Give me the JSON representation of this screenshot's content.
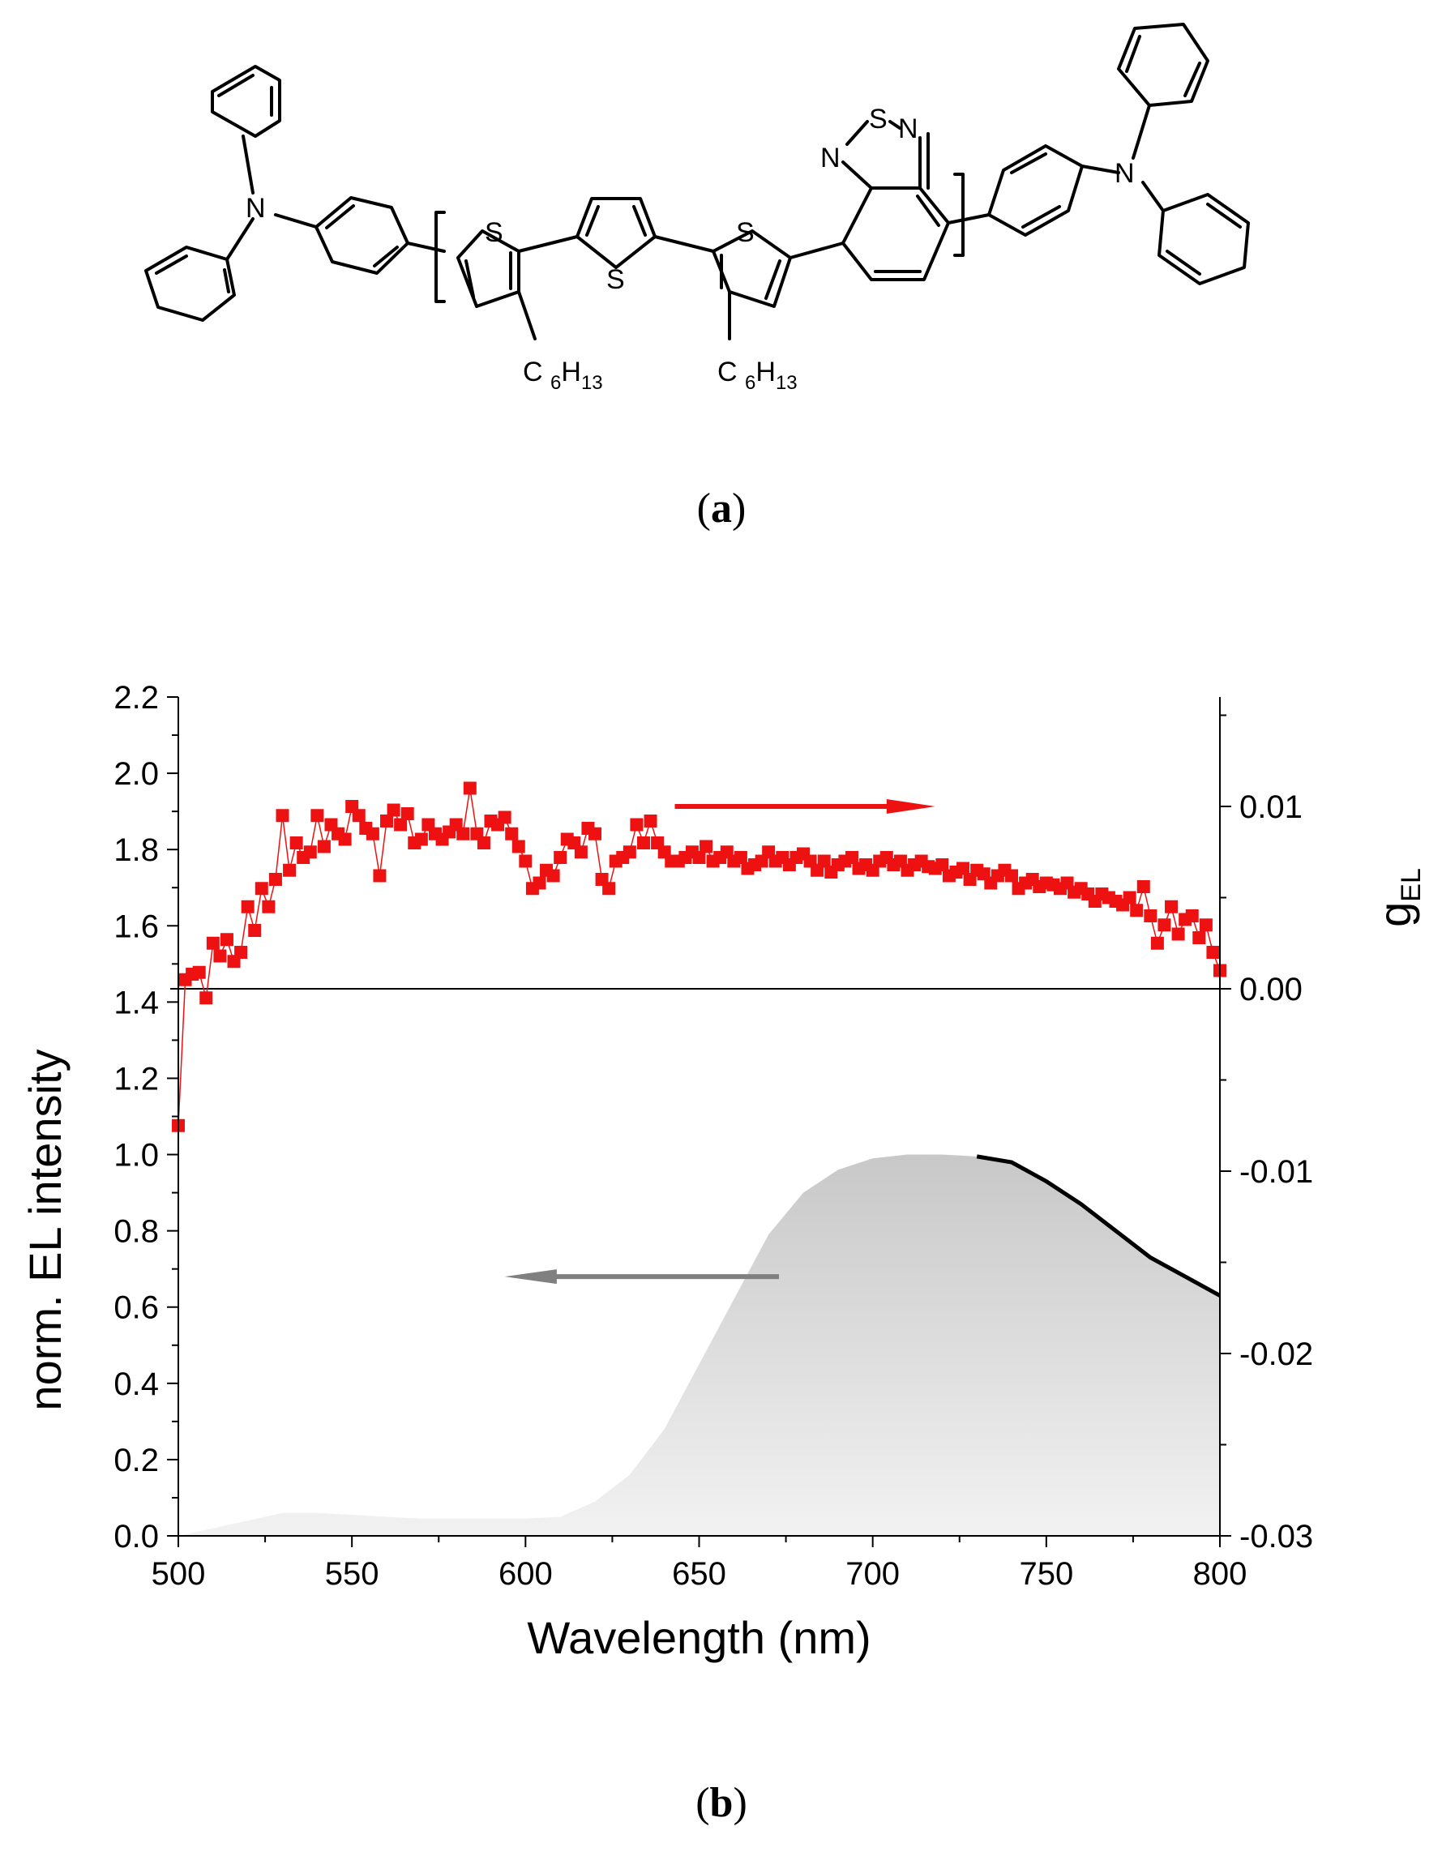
{
  "figure": {
    "panel_a_label": "a",
    "panel_b_label": "b"
  },
  "molecule": {
    "atoms": {
      "n_left": "N",
      "n_right": "N",
      "s1": "S",
      "s2": "S",
      "s3": "S",
      "s_btd": "S",
      "n_btd_left": "N",
      "n_btd_right": "N",
      "hexyl_1": "C6H13",
      "hexyl_2": "C6H13"
    }
  },
  "chart_data": {
    "type": "line",
    "xlabel": "Wavelength (nm)",
    "ylabel": "norm. EL intensity",
    "y2label": "gEL",
    "xlim": [
      500,
      800
    ],
    "ylim": [
      0,
      2.2
    ],
    "y2lim": [
      -0.03,
      0.016
    ],
    "xticks": [
      500,
      550,
      600,
      650,
      700,
      750,
      800
    ],
    "yticks": [
      0.0,
      0.2,
      0.4,
      0.6,
      0.8,
      1.0,
      1.2,
      1.4,
      1.6,
      1.8,
      2.0,
      2.2
    ],
    "yticklabels": [
      "0.0",
      "0.2",
      "0.4",
      "0.6",
      "0.8",
      "1.0",
      "1.2",
      "1.4",
      "1.6",
      "1.8",
      "2.0",
      "2.2"
    ],
    "y2ticks": [
      -0.03,
      -0.02,
      -0.01,
      0.0,
      0.01
    ],
    "y2ticklabels": [
      "-0.03",
      "-0.02",
      "-0.01",
      "0.00",
      "0.01"
    ],
    "zero_line_gEL": 0.0,
    "colors": {
      "gEL": "#ee1111",
      "el_fill_top": "#c8c8c8",
      "el_fill_bottom": "#f2f2f2",
      "el_line": "#000000",
      "arrow_left": "#808080",
      "arrow_right": "#ee1111"
    },
    "series": [
      {
        "axis": "left",
        "style": "filled-area",
        "x": [
          500,
          510,
          520,
          530,
          540,
          550,
          560,
          570,
          580,
          590,
          600,
          610,
          620,
          630,
          640,
          650,
          660,
          670,
          680,
          690,
          700,
          710,
          720,
          730,
          740,
          750,
          760,
          770,
          780,
          790,
          800
        ],
        "values": [
          0.0,
          0.02,
          0.04,
          0.06,
          0.06,
          0.055,
          0.05,
          0.045,
          0.045,
          0.045,
          0.045,
          0.05,
          0.09,
          0.16,
          0.28,
          0.45,
          0.62,
          0.79,
          0.9,
          0.96,
          0.99,
          1.0,
          1.0,
          0.995,
          0.98,
          0.93,
          0.87,
          0.8,
          0.73,
          0.68,
          0.63
        ]
      },
      {
        "axis": "left",
        "style": "line",
        "x": [
          730,
          740,
          750,
          760,
          770,
          780,
          790,
          800
        ],
        "values": [
          0.995,
          0.98,
          0.93,
          0.87,
          0.8,
          0.73,
          0.68,
          0.63
        ]
      },
      {
        "axis": "right",
        "style": "line-markers",
        "x": [
          500,
          502,
          504,
          506,
          508,
          510,
          512,
          514,
          516,
          518,
          520,
          522,
          524,
          526,
          528,
          530,
          532,
          534,
          536,
          538,
          540,
          542,
          544,
          546,
          548,
          550,
          552,
          554,
          556,
          558,
          560,
          562,
          564,
          566,
          568,
          570,
          572,
          574,
          576,
          578,
          580,
          582,
          584,
          586,
          588,
          590,
          592,
          594,
          596,
          598,
          600,
          602,
          604,
          606,
          608,
          610,
          612,
          614,
          616,
          618,
          620,
          622,
          624,
          626,
          628,
          630,
          632,
          634,
          636,
          638,
          640,
          642,
          644,
          646,
          648,
          650,
          652,
          654,
          656,
          658,
          660,
          662,
          664,
          666,
          668,
          670,
          672,
          674,
          676,
          678,
          680,
          682,
          684,
          686,
          688,
          690,
          692,
          694,
          696,
          698,
          700,
          702,
          704,
          706,
          708,
          710,
          712,
          714,
          716,
          718,
          720,
          722,
          724,
          726,
          728,
          730,
          732,
          734,
          736,
          738,
          740,
          742,
          744,
          746,
          748,
          750,
          752,
          754,
          756,
          758,
          760,
          762,
          764,
          766,
          768,
          770,
          772,
          774,
          776,
          778,
          780,
          782,
          784,
          786,
          788,
          790,
          792,
          794,
          796,
          798,
          800
        ],
        "values": [
          -0.0075,
          0.0005,
          0.0008,
          0.0009,
          -0.0005,
          0.0025,
          0.0018,
          0.0027,
          0.0015,
          0.002,
          0.0045,
          0.0032,
          0.0055,
          0.0045,
          0.006,
          0.0095,
          0.0065,
          0.008,
          0.0072,
          0.0075,
          0.0095,
          0.0078,
          0.009,
          0.0085,
          0.0082,
          0.01,
          0.0095,
          0.0088,
          0.0085,
          0.0062,
          0.0092,
          0.0098,
          0.009,
          0.0096,
          0.008,
          0.0082,
          0.009,
          0.0085,
          0.0082,
          0.0086,
          0.009,
          0.0085,
          0.011,
          0.0085,
          0.008,
          0.0092,
          0.009,
          0.0094,
          0.0085,
          0.0078,
          0.007,
          0.0055,
          0.0058,
          0.0065,
          0.0062,
          0.0072,
          0.0082,
          0.008,
          0.0075,
          0.0088,
          0.0085,
          0.006,
          0.0055,
          0.007,
          0.0072,
          0.0075,
          0.009,
          0.008,
          0.0092,
          0.008,
          0.0075,
          0.007,
          0.007,
          0.0072,
          0.0075,
          0.0072,
          0.0078,
          0.007,
          0.0072,
          0.0075,
          0.007,
          0.0072,
          0.0066,
          0.0068,
          0.007,
          0.0075,
          0.007,
          0.0072,
          0.0068,
          0.0072,
          0.0074,
          0.007,
          0.0065,
          0.007,
          0.0064,
          0.0068,
          0.007,
          0.0072,
          0.0066,
          0.0068,
          0.0065,
          0.007,
          0.0072,
          0.0068,
          0.007,
          0.0065,
          0.0068,
          0.007,
          0.0067,
          0.0066,
          0.0068,
          0.0062,
          0.0064,
          0.0066,
          0.006,
          0.0065,
          0.0063,
          0.0058,
          0.0062,
          0.0065,
          0.0062,
          0.0055,
          0.0058,
          0.006,
          0.0056,
          0.0058,
          0.0057,
          0.0055,
          0.0058,
          0.0053,
          0.0055,
          0.0052,
          0.0048,
          0.0052,
          0.005,
          0.0048,
          0.0046,
          0.005,
          0.0043,
          0.0056,
          0.004,
          0.0025,
          0.0035,
          0.0045,
          0.003,
          0.0038,
          0.004,
          0.0028,
          0.0035,
          0.002,
          0.001
        ]
      }
    ]
  }
}
